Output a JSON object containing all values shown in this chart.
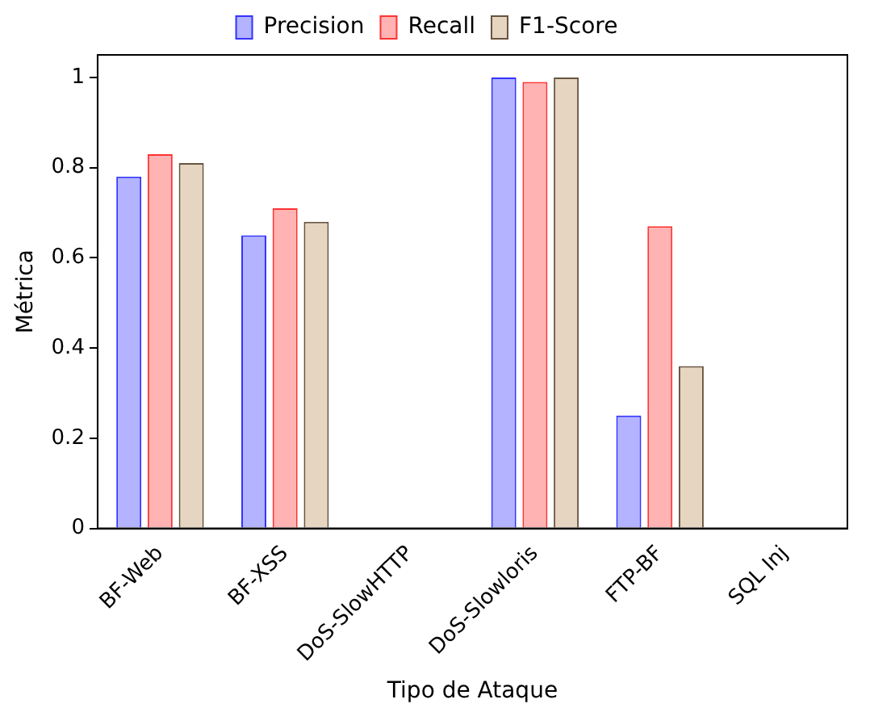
{
  "chart_data": {
    "type": "bar",
    "xlabel": "Tipo de Ataque",
    "ylabel": "Métrica",
    "categories": [
      "BF-Web",
      "BF-XSS",
      "DoS-SlowHTTP",
      "DoS-Slowloris",
      "FTP-BF",
      "SQL Inj"
    ],
    "series": [
      {
        "name": "Precision",
        "color": "#b3b3ff",
        "values": [
          0.78,
          0.65,
          0,
          1.0,
          0.25,
          0
        ]
      },
      {
        "name": "Recall",
        "color": "#ffb3b3",
        "values": [
          0.83,
          0.71,
          0,
          0.99,
          0.67,
          0
        ]
      },
      {
        "name": "F1-Score",
        "color": "#e6d5c0",
        "values": [
          0.81,
          0.68,
          0,
          1.0,
          0.36,
          0
        ]
      }
    ],
    "ylim": [
      0,
      1.05
    ],
    "yticks": [
      0,
      0.2,
      0.4,
      0.6,
      0.8,
      1
    ],
    "grid": false,
    "legend": "top"
  }
}
